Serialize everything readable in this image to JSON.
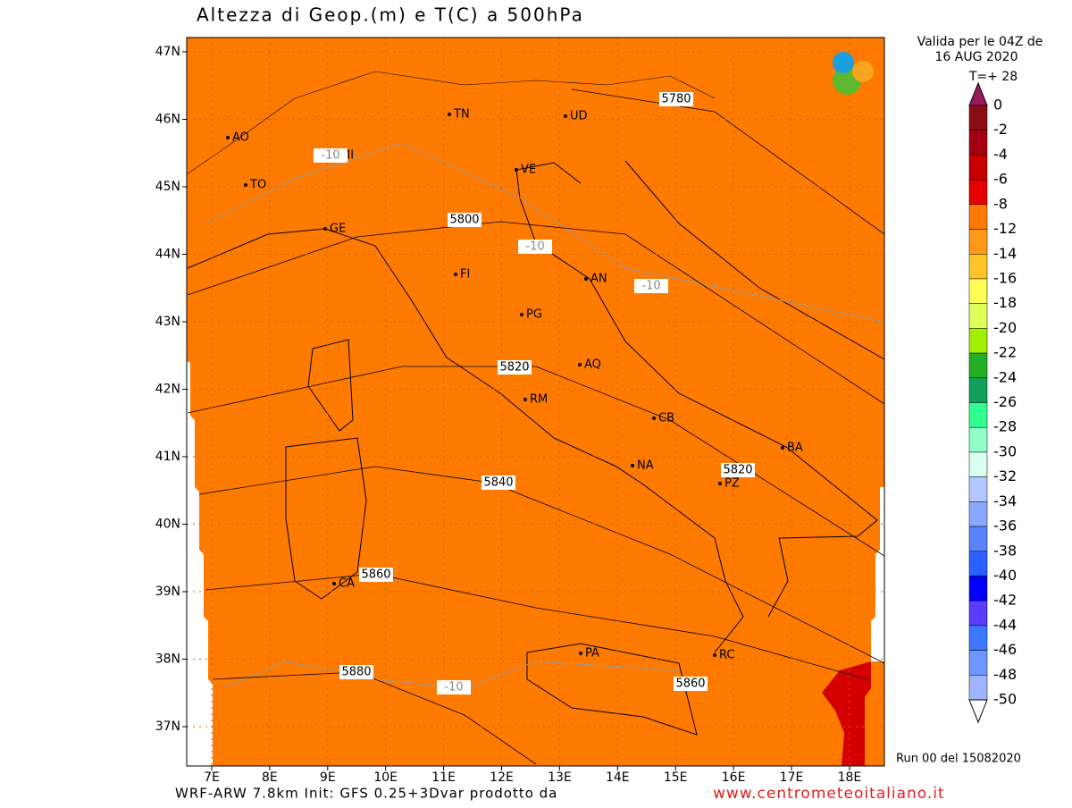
{
  "header": {
    "title": "Altezza di Geop.(m) e T(C) a 500hPa"
  },
  "validity": {
    "line1": "Valida per le 04Z de",
    "line2": "16 AUG 2020",
    "line3": "T=+ 28"
  },
  "legend": {
    "labels": [
      "0",
      "-2",
      "-4",
      "-6",
      "-8",
      "-12",
      "-14",
      "-16",
      "-18",
      "-20",
      "-22",
      "-24",
      "-26",
      "-28",
      "-30",
      "-32",
      "-34",
      "-36",
      "-38",
      "-40",
      "-42",
      "-44",
      "-46",
      "-48",
      "-50"
    ],
    "colors": [
      "#8c0c14",
      "#a5000f",
      "#c80000",
      "#e60000",
      "#ff7800",
      "#ff9a18",
      "#ffc428",
      "#ffff55",
      "#dfff5a",
      "#a0f000",
      "#22b022",
      "#10a05a",
      "#30ff90",
      "#90ffc8",
      "#d8fff0",
      "#b4c8ff",
      "#8aa8ff",
      "#5a84ff",
      "#2a60ff",
      "#0000ff",
      "#5a3cff",
      "#3c78ff",
      "#6e96ff",
      "#a0b4ff"
    ]
  },
  "map": {
    "lat_labels": [
      "47N",
      "46N",
      "45N",
      "44N",
      "43N",
      "42N",
      "41N",
      "40N",
      "39N",
      "38N",
      "37N"
    ],
    "lon_labels": [
      "7E",
      "8E",
      "9E",
      "10E",
      "11E",
      "12E",
      "13E",
      "14E",
      "15E",
      "16E",
      "17E",
      "18E"
    ],
    "cities": [
      "AO",
      "MI",
      "TO",
      "TN",
      "UD",
      "VE",
      "GE",
      "FI",
      "AN",
      "PG",
      "AQ",
      "RM",
      "CB",
      "BA",
      "NA",
      "PZ",
      "CA",
      "PA",
      "RC"
    ],
    "contour_labels": [
      "5780",
      "5800",
      "5820",
      "5820",
      "5840",
      "5860",
      "5880",
      "5860",
      "-10",
      "-10",
      "-10",
      "-10"
    ]
  },
  "footer": {
    "model": "WRF-ARW 7.8km Init: GFS 0.25+3Dvar prodotto da",
    "site": "www.centrometeoitaliano.it",
    "run": "Run 00 del 15082020"
  }
}
